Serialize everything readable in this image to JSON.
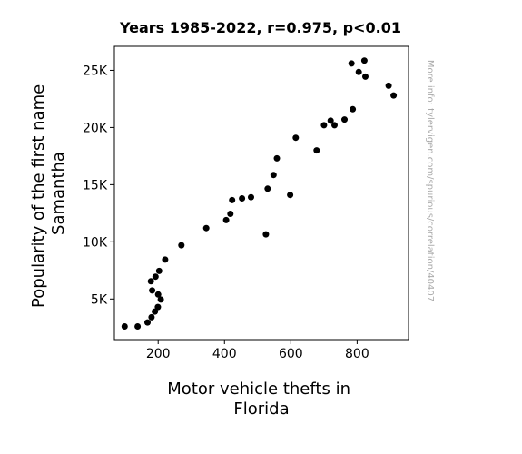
{
  "chart_data": {
    "type": "scatter",
    "title": "Years 1985-2022, r=0.975, p<0.01",
    "xlabel_lines": [
      "Motor vehicle thefts in",
      "Florida"
    ],
    "ylabel_lines": [
      "Popularity of the first name",
      "Samantha"
    ],
    "watermark": "More info: tylervigen.com/spurious/correlation/40407",
    "xlim": [
      68,
      955
    ],
    "ylim": [
      1450,
      27100
    ],
    "xticks": [
      {
        "value": 200,
        "label": "200"
      },
      {
        "value": 400,
        "label": "400"
      },
      {
        "value": 600,
        "label": "600"
      },
      {
        "value": 800,
        "label": "800"
      }
    ],
    "yticks": [
      {
        "value": 5000,
        "label": "5K"
      },
      {
        "value": 10000,
        "label": "10K"
      },
      {
        "value": 15000,
        "label": "15K"
      },
      {
        "value": 20000,
        "label": "20K"
      },
      {
        "value": 25000,
        "label": "25K"
      }
    ],
    "grid": false,
    "point_color": "#000000",
    "points": [
      {
        "x": 99,
        "y": 2600
      },
      {
        "x": 138,
        "y": 2600
      },
      {
        "x": 168,
        "y": 2950
      },
      {
        "x": 180,
        "y": 3400
      },
      {
        "x": 190,
        "y": 3900
      },
      {
        "x": 199,
        "y": 4300
      },
      {
        "x": 208,
        "y": 4950
      },
      {
        "x": 200,
        "y": 5400
      },
      {
        "x": 182,
        "y": 5750
      },
      {
        "x": 178,
        "y": 6550
      },
      {
        "x": 192,
        "y": 6950
      },
      {
        "x": 203,
        "y": 7450
      },
      {
        "x": 221,
        "y": 8450
      },
      {
        "x": 270,
        "y": 9700
      },
      {
        "x": 345,
        "y": 11200
      },
      {
        "x": 405,
        "y": 11900
      },
      {
        "x": 418,
        "y": 12450
      },
      {
        "x": 423,
        "y": 13650
      },
      {
        "x": 453,
        "y": 13800
      },
      {
        "x": 480,
        "y": 13900
      },
      {
        "x": 525,
        "y": 10650
      },
      {
        "x": 530,
        "y": 14650
      },
      {
        "x": 548,
        "y": 15850
      },
      {
        "x": 558,
        "y": 17300
      },
      {
        "x": 598,
        "y": 14100
      },
      {
        "x": 615,
        "y": 19100
      },
      {
        "x": 678,
        "y": 18000
      },
      {
        "x": 700,
        "y": 20200
      },
      {
        "x": 720,
        "y": 20600
      },
      {
        "x": 732,
        "y": 20200
      },
      {
        "x": 762,
        "y": 20700
      },
      {
        "x": 783,
        "y": 25600
      },
      {
        "x": 787,
        "y": 21600
      },
      {
        "x": 805,
        "y": 24850
      },
      {
        "x": 822,
        "y": 25850
      },
      {
        "x": 825,
        "y": 24450
      },
      {
        "x": 895,
        "y": 23650
      },
      {
        "x": 910,
        "y": 22800
      }
    ]
  }
}
